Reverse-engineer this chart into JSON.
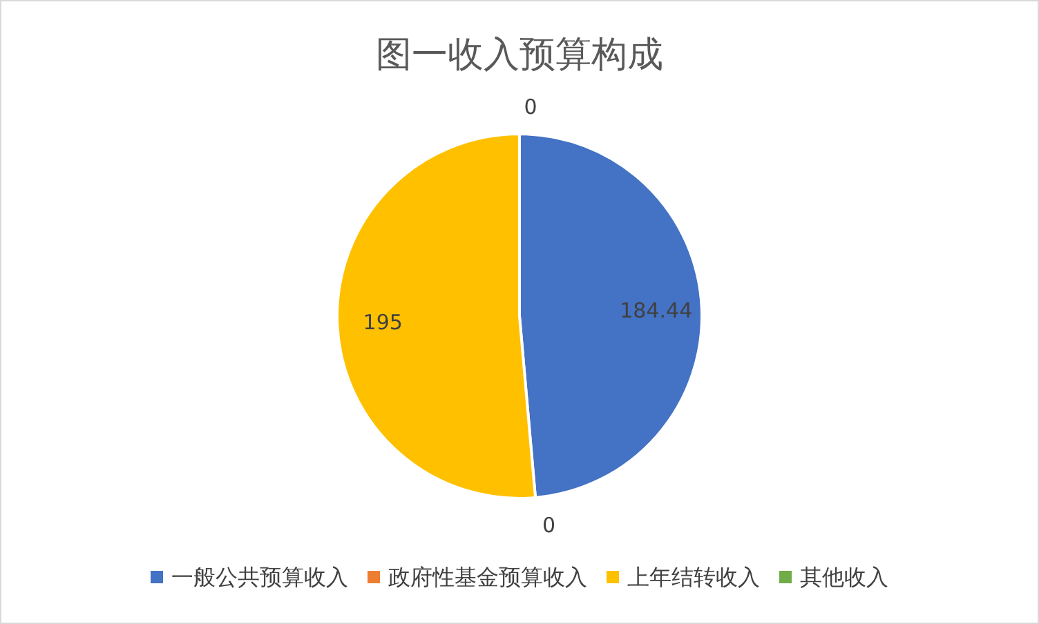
{
  "chart_data": {
    "type": "pie",
    "title": "图一收入预算构成",
    "categories": [
      "一般公共预算收入",
      "政府性基金预算收入",
      "上年结转收入",
      "其他收入"
    ],
    "values": [
      184.44,
      0,
      195,
      0
    ],
    "colors": [
      "#4472c4",
      "#ed7d31",
      "#ffc000",
      "#70ad47"
    ],
    "value_labels": [
      "184.44",
      "0",
      "195",
      "0"
    ],
    "legend": "bottom"
  }
}
